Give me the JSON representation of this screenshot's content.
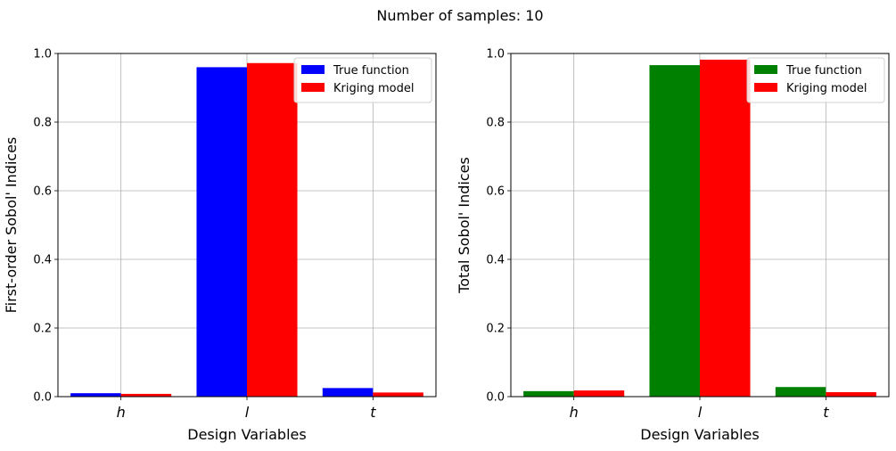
{
  "suptitle": "Number of samples: 10",
  "chart_data": [
    {
      "type": "bar",
      "categories": [
        "h",
        "l",
        "t"
      ],
      "xlabel": "Design Variables",
      "ylabel": "First-order Sobol' Indices",
      "ylim": [
        0,
        1
      ],
      "yticks": [
        "0.0",
        "0.2",
        "0.4",
        "0.6",
        "0.8",
        "1.0"
      ],
      "grid": true,
      "legend": "top-right",
      "series": [
        {
          "name": "True function",
          "color": "#0000ff",
          "values": [
            0.01,
            0.96,
            0.025
          ]
        },
        {
          "name": "Kriging model",
          "color": "#ff0000",
          "values": [
            0.008,
            0.972,
            0.012
          ]
        }
      ]
    },
    {
      "type": "bar",
      "categories": [
        "h",
        "l",
        "t"
      ],
      "xlabel": "Design Variables",
      "ylabel": "Total Sobol' Indices",
      "ylim": [
        0,
        1
      ],
      "yticks": [
        "0.0",
        "0.2",
        "0.4",
        "0.6",
        "0.8",
        "1.0"
      ],
      "grid": true,
      "legend": "top-right",
      "series": [
        {
          "name": "True function",
          "color": "#008000",
          "values": [
            0.016,
            0.966,
            0.028
          ]
        },
        {
          "name": "Kriging model",
          "color": "#ff0000",
          "values": [
            0.018,
            0.982,
            0.013
          ]
        }
      ]
    }
  ]
}
